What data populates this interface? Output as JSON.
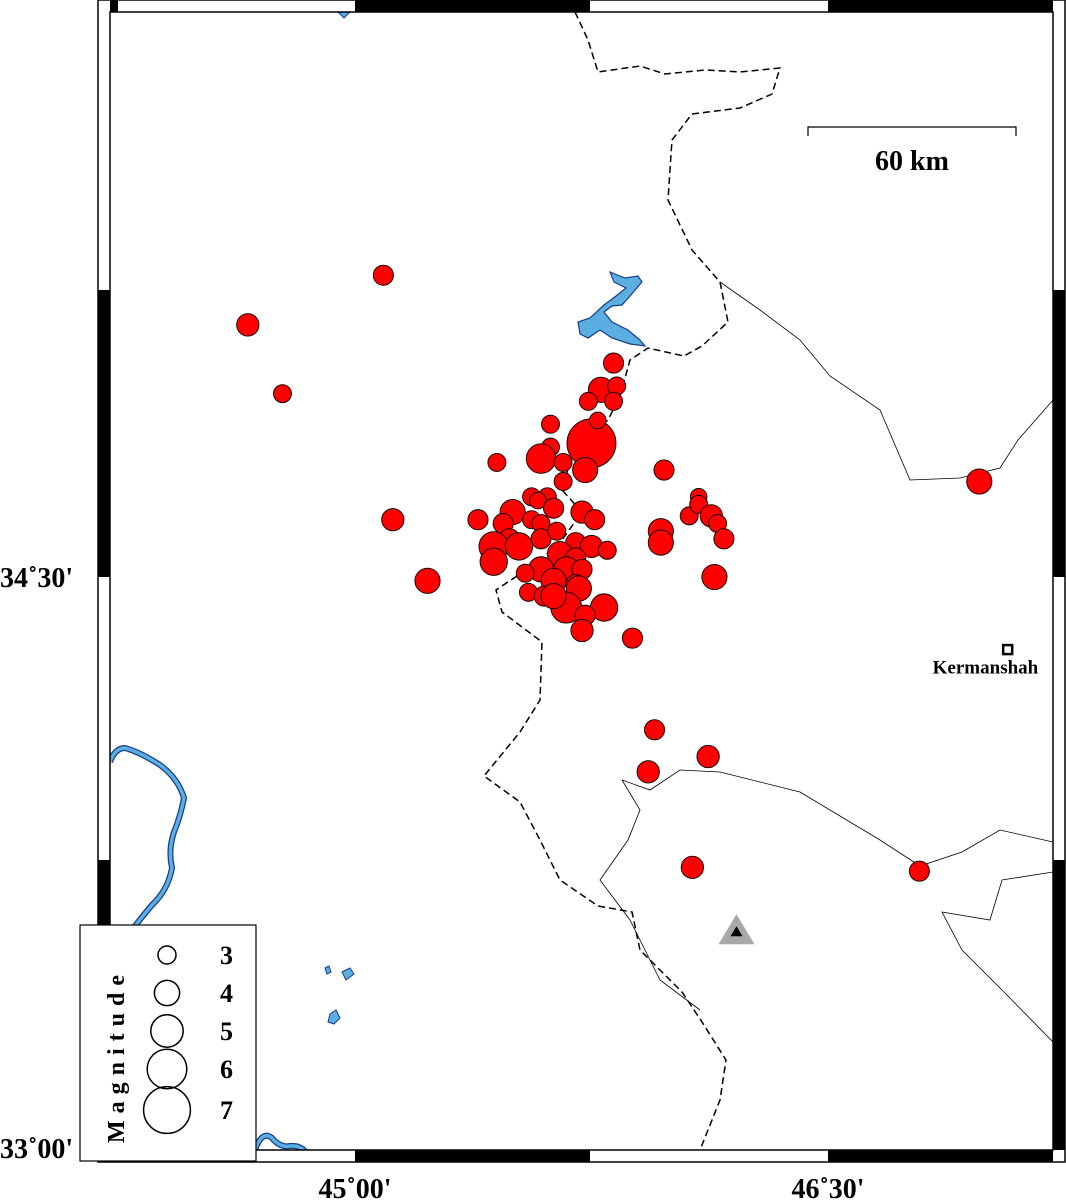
{
  "map": {
    "lon_range": [
      44.27,
      47.27
    ],
    "lat_range": [
      33.0,
      35.98
    ],
    "axis_labels": {
      "lon": [
        {
          "value": 45.0,
          "text": "45˚00'"
        },
        {
          "value": 46.5,
          "text": "46˚30'"
        }
      ],
      "lat": [
        {
          "value": 34.5,
          "text": "34˚30'"
        },
        {
          "value": 33.0,
          "text": "33˚00'"
        }
      ]
    },
    "scale_bar": {
      "label": "60 km"
    },
    "city": {
      "name": "Kermanshah",
      "lon": 47.07,
      "lat": 34.31
    },
    "station": {
      "lon": 46.21,
      "lat": 33.57
    },
    "colors": {
      "event": "#ff0000",
      "water": "#5aafe0",
      "station": "#a8a8a8"
    }
  },
  "legend": {
    "title": "Magnitude",
    "entries": [
      {
        "mag": 3,
        "label": "3"
      },
      {
        "mag": 4,
        "label": "4"
      },
      {
        "mag": 5,
        "label": "5"
      },
      {
        "mag": 6,
        "label": "6"
      },
      {
        "mag": 7,
        "label": "7"
      }
    ]
  },
  "events": [
    [
      45.09,
      35.29,
      3.3
    ],
    [
      44.66,
      35.16,
      3.6
    ],
    [
      44.77,
      34.98,
      3.0
    ],
    [
      45.12,
      34.65,
      3.6
    ],
    [
      45.23,
      34.49,
      4.0
    ],
    [
      45.45,
      34.8,
      3.0
    ],
    [
      45.39,
      34.65,
      3.3
    ],
    [
      45.82,
      35.06,
      3.3
    ],
    [
      45.78,
      34.99,
      4.0
    ],
    [
      45.83,
      35.0,
      3.0
    ],
    [
      45.74,
      34.96,
      3.0
    ],
    [
      45.82,
      34.96,
      3.0
    ],
    [
      45.75,
      34.85,
      7.3
    ],
    [
      45.77,
      34.91,
      2.8
    ],
    [
      45.62,
      34.9,
      3.0
    ],
    [
      45.62,
      34.84,
      3.0
    ],
    [
      45.59,
      34.81,
      4.6
    ],
    [
      45.66,
      34.8,
      3.0
    ],
    [
      45.73,
      34.78,
      4.0
    ],
    [
      45.66,
      34.75,
      3.0
    ],
    [
      45.98,
      34.78,
      3.3
    ],
    [
      45.56,
      34.71,
      3.0
    ],
    [
      45.61,
      34.71,
      3.0
    ],
    [
      45.58,
      34.7,
      2.8
    ],
    [
      45.5,
      34.67,
      4.0
    ],
    [
      45.47,
      34.64,
      3.3
    ],
    [
      45.56,
      34.65,
      3.0
    ],
    [
      45.63,
      34.68,
      3.3
    ],
    [
      45.72,
      34.67,
      3.6
    ],
    [
      45.76,
      34.65,
      3.3
    ],
    [
      45.59,
      34.64,
      3.0
    ],
    [
      45.49,
      34.6,
      3.3
    ],
    [
      45.59,
      34.6,
      3.3
    ],
    [
      45.64,
      34.62,
      3.0
    ],
    [
      45.7,
      34.59,
      3.3
    ],
    [
      45.75,
      34.58,
      3.6
    ],
    [
      45.8,
      34.57,
      3.0
    ],
    [
      45.44,
      34.58,
      4.6
    ],
    [
      45.44,
      34.54,
      4.3
    ],
    [
      45.52,
      34.58,
      4.3
    ],
    [
      45.65,
      34.56,
      4.0
    ],
    [
      45.7,
      34.55,
      3.3
    ],
    [
      45.59,
      34.52,
      4.0
    ],
    [
      45.67,
      34.52,
      4.0
    ],
    [
      45.72,
      34.52,
      3.3
    ],
    [
      45.54,
      34.51,
      3.0
    ],
    [
      45.63,
      34.49,
      4.0
    ],
    [
      45.7,
      34.48,
      3.3
    ],
    [
      45.55,
      34.46,
      3.0
    ],
    [
      45.6,
      34.45,
      3.3
    ],
    [
      45.71,
      34.47,
      4.0
    ],
    [
      45.67,
      34.42,
      4.8
    ],
    [
      45.63,
      34.45,
      4.0
    ],
    [
      45.79,
      34.42,
      4.3
    ],
    [
      45.73,
      34.4,
      3.3
    ],
    [
      45.72,
      34.36,
      3.6
    ],
    [
      45.88,
      34.34,
      3.3
    ],
    [
      45.97,
      34.62,
      4.0
    ],
    [
      45.97,
      34.59,
      4.0
    ],
    [
      46.06,
      34.66,
      3.0
    ],
    [
      46.09,
      34.71,
      2.8
    ],
    [
      46.09,
      34.69,
      3.0
    ],
    [
      46.13,
      34.66,
      3.6
    ],
    [
      46.15,
      34.64,
      3.0
    ],
    [
      46.17,
      34.6,
      3.3
    ],
    [
      46.14,
      34.5,
      4.0
    ],
    [
      46.98,
      34.75,
      4.0
    ],
    [
      45.95,
      34.1,
      3.3
    ],
    [
      46.12,
      34.03,
      3.6
    ],
    [
      45.93,
      33.99,
      3.6
    ],
    [
      46.07,
      33.74,
      3.6
    ],
    [
      46.79,
      33.73,
      3.3
    ]
  ]
}
